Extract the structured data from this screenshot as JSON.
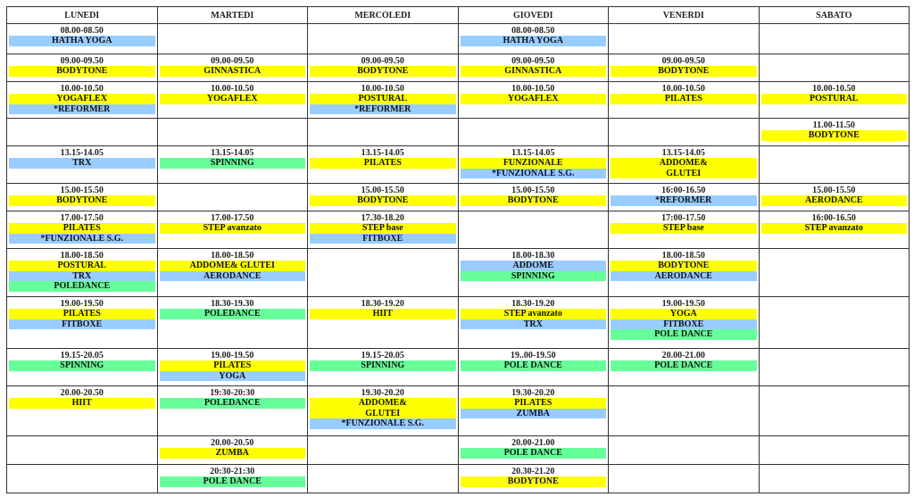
{
  "colors": {
    "y": "#ffff00",
    "b": "#99ccff",
    "g": "#66ff99"
  },
  "days": [
    "LUNEDI",
    "MARTEDI",
    "MERCOLEDI",
    "GIOVEDI",
    "VENERDI",
    "SABATO"
  ],
  "rows": [
    [
      {
        "time": "08.00-08.50",
        "classes": [
          {
            "name": "HATHA YOGA",
            "color": "b"
          }
        ]
      },
      null,
      null,
      {
        "time": "08.00-08.50",
        "classes": [
          {
            "name": "HATHA YOGA",
            "color": "b"
          }
        ]
      },
      null,
      null
    ],
    [
      {
        "time": "09.00-09.50",
        "classes": [
          {
            "name": "BODYTONE",
            "color": "y"
          }
        ]
      },
      {
        "time": "09.00-09.50",
        "classes": [
          {
            "name": "GINNASTICA",
            "color": "y"
          }
        ]
      },
      {
        "time": "09.00-09.50",
        "classes": [
          {
            "name": "BODYTONE",
            "color": "y"
          }
        ]
      },
      {
        "time": "09.00-09.50",
        "classes": [
          {
            "name": "GINNASTICA",
            "color": "y"
          }
        ]
      },
      {
        "time": "09.00-09.50",
        "classes": [
          {
            "name": "BODYTONE",
            "color": "y"
          }
        ]
      },
      null
    ],
    [
      {
        "time": "10.00-10.50",
        "classes": [
          {
            "name": "YOGAFLEX",
            "color": "y"
          },
          {
            "name": "*REFORMER",
            "color": "b"
          }
        ]
      },
      {
        "time": "10.00-10.50",
        "classes": [
          {
            "name": "YOGAFLEX",
            "color": "y"
          }
        ]
      },
      {
        "time": "10.00-10.50",
        "classes": [
          {
            "name": "POSTURAL",
            "color": "y"
          },
          {
            "name": "*REFORMER",
            "color": "b"
          }
        ]
      },
      {
        "time": "10.00-10.50",
        "classes": [
          {
            "name": "YOGAFLEX",
            "color": "y"
          }
        ]
      },
      {
        "time": "10.00-10.50",
        "classes": [
          {
            "name": "PILATES",
            "color": "y"
          }
        ]
      },
      {
        "time": "10.00-10.50",
        "classes": [
          {
            "name": "POSTURAL",
            "color": "y"
          }
        ]
      }
    ],
    [
      null,
      null,
      null,
      null,
      null,
      {
        "time": "11.00-11.50",
        "classes": [
          {
            "name": "BODYTONE",
            "color": "y"
          }
        ]
      }
    ],
    [
      {
        "time": "13.15-14.05",
        "classes": [
          {
            "name": "TRX",
            "color": "b"
          }
        ]
      },
      {
        "time": "13.15-14.05",
        "classes": [
          {
            "name": "SPINNING",
            "color": "g"
          }
        ]
      },
      {
        "time": "13.15-14.05",
        "classes": [
          {
            "name": "PILATES",
            "color": "y"
          }
        ]
      },
      {
        "time": "13.15-14.05",
        "classes": [
          {
            "name": "FUNZIONALE",
            "color": "y"
          },
          {
            "name": "*FUNZIONALE S.G.",
            "color": "b"
          }
        ]
      },
      {
        "time": "13.15-14.05",
        "classes": [
          {
            "name": "ADDOME&\nGLUTEI",
            "color": "y"
          }
        ]
      },
      null
    ],
    [
      {
        "time": "15.00-15.50",
        "classes": [
          {
            "name": "BODYTONE",
            "color": "y"
          }
        ]
      },
      null,
      {
        "time": "15.00-15.50",
        "classes": [
          {
            "name": "BODYTONE",
            "color": "y"
          }
        ]
      },
      {
        "time": "15.00-15.50",
        "classes": [
          {
            "name": "BODYTONE",
            "color": "y"
          }
        ]
      },
      {
        "time": "16:00-16.50",
        "classes": [
          {
            "name": "*REFORMER",
            "color": "b"
          }
        ]
      },
      {
        "time": "15.00-15.50",
        "classes": [
          {
            "name": "AERODANCE",
            "color": "y"
          }
        ]
      }
    ],
    [
      {
        "time": "17.00-17.50",
        "classes": [
          {
            "name": "PILATES",
            "color": "y"
          },
          {
            "name": "*FUNZIONALE S.G.",
            "color": "b"
          }
        ]
      },
      {
        "time": "17.00-17.50",
        "classes": [
          {
            "name": "STEP avanzato",
            "color": "y"
          }
        ]
      },
      {
        "time": "17.30-18.20",
        "classes": [
          {
            "name": "STEP base",
            "color": "y"
          },
          {
            "name": "FITBOXE",
            "color": "b"
          }
        ]
      },
      null,
      {
        "time": "17:00-17.50",
        "classes": [
          {
            "name": "STEP base",
            "color": "y"
          }
        ]
      },
      {
        "time": "16:00-16.50",
        "classes": [
          {
            "name": "STEP avanzato",
            "color": "y"
          }
        ]
      }
    ],
    [
      {
        "time": "18.00-18.50",
        "classes": [
          {
            "name": "POSTURAL",
            "color": "y"
          },
          {
            "name": "TRX",
            "color": "b"
          },
          {
            "name": "POLEDANCE",
            "color": "g"
          }
        ]
      },
      {
        "time": "18.00-18.50",
        "classes": [
          {
            "name": "ADDOME& GLUTEI",
            "color": "y"
          },
          {
            "name": "AERODANCE",
            "color": "b"
          }
        ]
      },
      null,
      {
        "time": "18.00-18.30",
        "classes": [
          {
            "name": "ADDOME",
            "color": "b"
          },
          {
            "name": "SPINNING",
            "color": "g"
          }
        ]
      },
      {
        "time": "18.00-18.50",
        "classes": [
          {
            "name": "BODYTONE",
            "color": "y"
          },
          {
            "name": "AERODANCE",
            "color": "b"
          }
        ]
      },
      null
    ],
    [
      {
        "time": "19.00-19.50",
        "classes": [
          {
            "name": "PILATES",
            "color": "y"
          },
          {
            "name": "FITBOXE",
            "color": "b"
          }
        ]
      },
      {
        "time": "18.30-19.30",
        "classes": [
          {
            "name": "POLEDANCE",
            "color": "g"
          }
        ]
      },
      {
        "time": "18.30-19.20",
        "classes": [
          {
            "name": "HIIT",
            "color": "y"
          }
        ]
      },
      {
        "time": "18.30-19.20",
        "classes": [
          {
            "name": "STEP avanzato",
            "color": "y"
          },
          {
            "name": "TRX",
            "color": "b"
          }
        ]
      },
      {
        "time": "19.00-19.50",
        "classes": [
          {
            "name": "YOGA",
            "color": "y"
          },
          {
            "name": "FITBOXE",
            "color": "b"
          },
          {
            "name": "POLE DANCE",
            "color": "g"
          }
        ]
      },
      null
    ],
    [
      {
        "time": "19.15-20.05",
        "classes": [
          {
            "name": "SPINNING",
            "color": "g"
          }
        ]
      },
      {
        "time": "19.00-19.50",
        "classes": [
          {
            "name": "PILATES",
            "color": "y"
          },
          {
            "name": "YOGA",
            "color": "b"
          }
        ]
      },
      {
        "time": "19.15-20.05",
        "classes": [
          {
            "name": "SPINNING",
            "color": "g"
          }
        ]
      },
      {
        "time": "19..00-19.50",
        "classes": [
          {
            "name": "POLE DANCE",
            "color": "g"
          }
        ]
      },
      {
        "time": "20.00-21.00",
        "classes": [
          {
            "name": "POLE DANCE",
            "color": "g"
          }
        ]
      },
      null
    ],
    [
      {
        "time": "20.00-20.50",
        "classes": [
          {
            "name": "HIIT",
            "color": "y"
          }
        ]
      },
      {
        "time": "19:30-20:30",
        "classes": [
          {
            "name": "POLEDANCE",
            "color": "g"
          }
        ]
      },
      {
        "time": "19.30-20.20",
        "classes": [
          {
            "name": "ADDOME&\nGLUTEI",
            "color": "y"
          },
          {
            "name": "*FUNZIONALE  S.G.",
            "color": "b"
          }
        ]
      },
      {
        "time": "19.30-20.20",
        "classes": [
          {
            "name": "PILATES",
            "color": "y"
          },
          {
            "name": "ZUMBA",
            "color": "b"
          }
        ]
      },
      null,
      null
    ],
    [
      null,
      {
        "time": "20.00-20.50",
        "classes": [
          {
            "name": "ZUMBA",
            "color": "y"
          }
        ]
      },
      null,
      {
        "time": "20.00-21.00",
        "classes": [
          {
            "name": "POLE DANCE",
            "color": "g"
          }
        ]
      },
      null,
      null
    ],
    [
      null,
      {
        "time": "20:30-21:30",
        "classes": [
          {
            "name": "POLE DANCE",
            "color": "g"
          }
        ]
      },
      null,
      {
        "time": "20.30-21.20",
        "classes": [
          {
            "name": "BODYTONE",
            "color": "y"
          }
        ]
      },
      null,
      null
    ]
  ]
}
